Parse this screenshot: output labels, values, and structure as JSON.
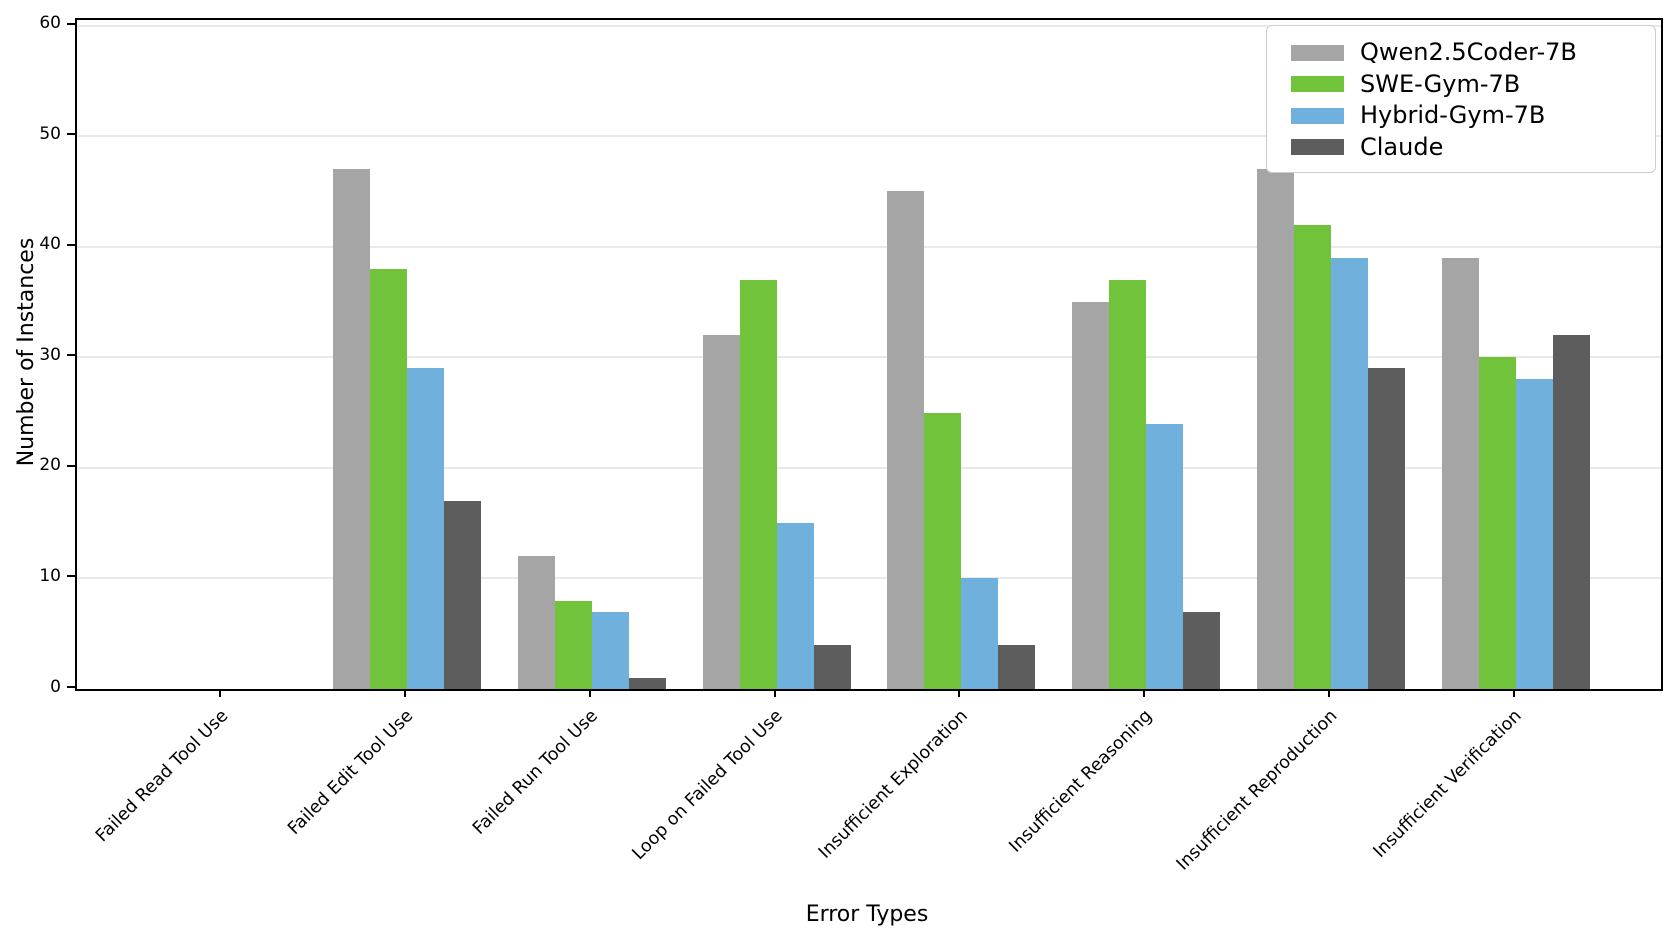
{
  "chart_data": {
    "type": "bar",
    "title": "",
    "xlabel": "Error Types",
    "ylabel": "Number of Instances",
    "categories": [
      "Failed Read Tool Use",
      "Failed Edit Tool Use",
      "Failed Run Tool Use",
      "Loop on Failed Tool Use",
      "Insufficient Exploration",
      "Insufficient Reasoning",
      "Insufficient Reproduction",
      "Insufficient Verification"
    ],
    "series": [
      {
        "name": "Qwen2.5Coder-7B",
        "color": "#a5a5a5",
        "values": [
          0,
          47,
          12,
          32,
          45,
          35,
          47,
          39
        ]
      },
      {
        "name": "SWE-Gym-7B",
        "color": "#72c33c",
        "values": [
          0,
          38,
          8,
          37,
          25,
          37,
          42,
          30
        ]
      },
      {
        "name": "Hybrid-Gym-7B",
        "color": "#70b0dc",
        "values": [
          0,
          29,
          7,
          15,
          10,
          24,
          39,
          28
        ]
      },
      {
        "name": "Claude",
        "color": "#5d5d5d",
        "values": [
          0,
          17,
          1,
          4,
          4,
          7,
          29,
          32
        ]
      }
    ],
    "ylim": [
      0,
      60.5
    ],
    "yticks": [
      0,
      10,
      20,
      30,
      40,
      50,
      60
    ],
    "grid": "horizontal",
    "gridline_color": "#e9e9e9",
    "legend_position": "upper right",
    "legend_border_color": "#cccccc"
  }
}
